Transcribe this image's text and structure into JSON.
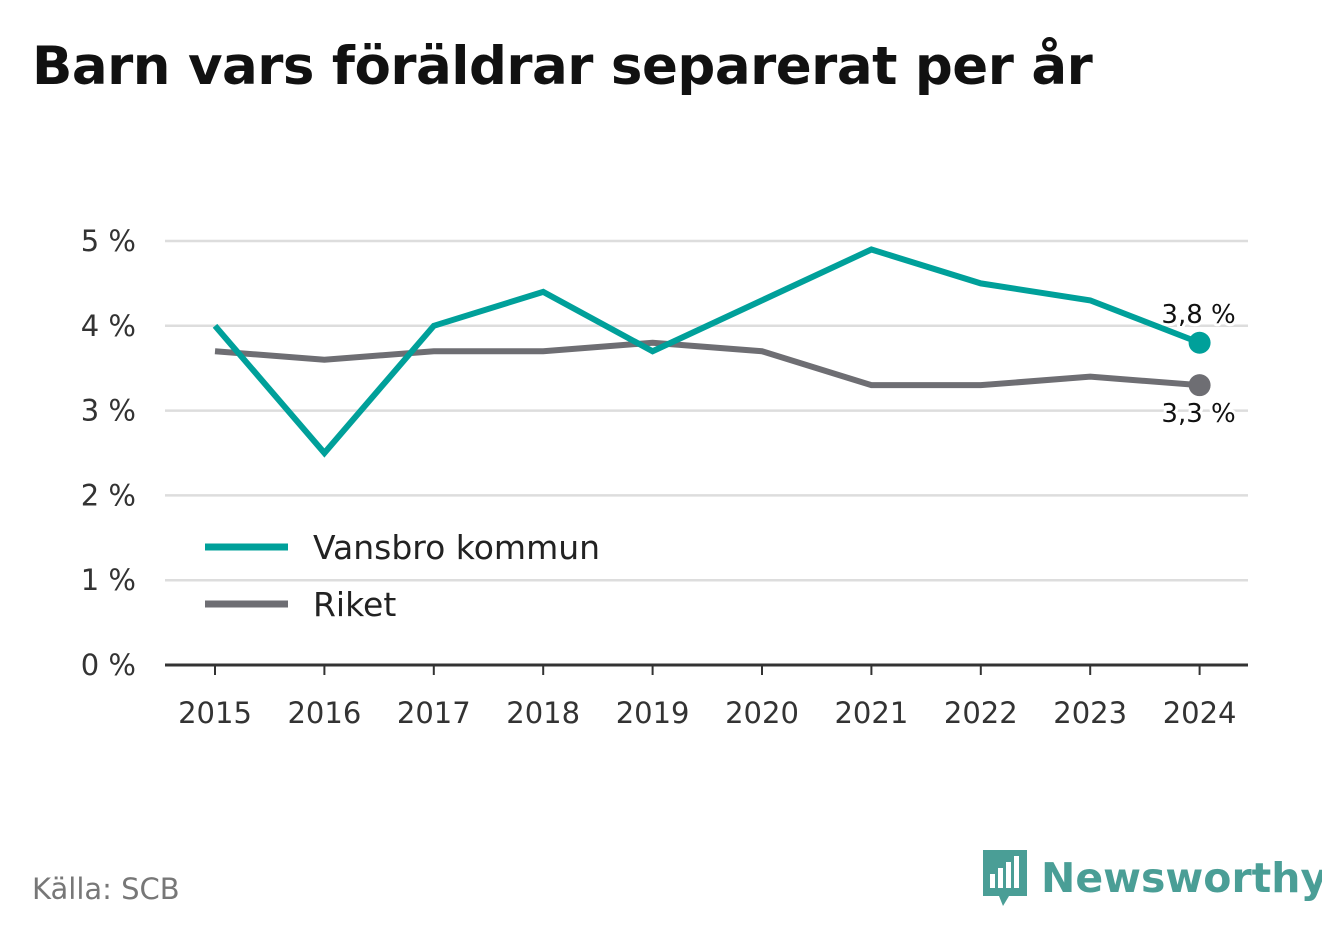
{
  "title": "Barn vars föräldrar separerat per år",
  "source": "Källa: SCB",
  "brand": {
    "name": "Newsworthy",
    "icon": "newsworthy-logo-icon",
    "color": "#4a9e96"
  },
  "chart_data": {
    "type": "line",
    "title": "Barn vars föräldrar separerat per år",
    "x": [
      "2015",
      "2016",
      "2017",
      "2018",
      "2019",
      "2020",
      "2021",
      "2022",
      "2023",
      "2024"
    ],
    "ylim": [
      0,
      5
    ],
    "yticks": [
      0,
      1,
      2,
      3,
      4,
      5
    ],
    "ytick_labels": [
      "0 %",
      "1 %",
      "2 %",
      "3 %",
      "4 %",
      "5 %"
    ],
    "grid": true,
    "legend_placement": "lower-left",
    "series": [
      {
        "name": "Vansbro kommun",
        "color": "#00a09a",
        "values": [
          4.0,
          2.5,
          4.0,
          4.4,
          3.7,
          4.3,
          4.9,
          4.5,
          4.3,
          3.8
        ],
        "end_label": "3,8 %"
      },
      {
        "name": "Riket",
        "color": "#6e6e73",
        "values": [
          3.7,
          3.6,
          3.7,
          3.7,
          3.8,
          3.7,
          3.3,
          3.3,
          3.4,
          3.3
        ],
        "end_label": "3,3 %"
      }
    ]
  }
}
